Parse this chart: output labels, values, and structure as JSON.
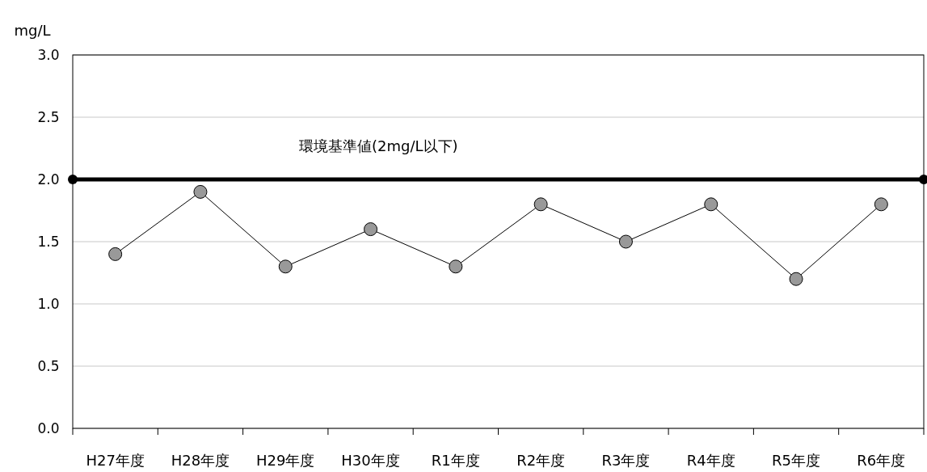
{
  "chart_data": {
    "type": "line",
    "ylabel": "mg/L",
    "categories": [
      "H27年度",
      "H28年度",
      "H29年度",
      "H30年度",
      "R1年度",
      "R2年度",
      "R3年度",
      "R4年度",
      "R5年度",
      "R6年度"
    ],
    "series": [
      {
        "color": "#999999",
        "values": [
          1.4,
          1.9,
          1.3,
          1.6,
          1.3,
          1.8,
          1.5,
          1.8,
          1.2,
          1.8
        ]
      }
    ],
    "ylim": [
      0,
      3
    ],
    "yticks": [
      {
        "value": 0,
        "label": "0.0"
      },
      {
        "value": 0.5,
        "label": "0.5"
      },
      {
        "value": 1,
        "label": "1.0"
      },
      {
        "value": 1.5,
        "label": "1.5"
      },
      {
        "value": 2,
        "label": "2.0"
      },
      {
        "value": 2.5,
        "label": "2.5"
      },
      {
        "value": 3,
        "label": "3.0"
      }
    ],
    "grid": "y",
    "marker": "circle",
    "line_style": "solid",
    "ref_lines": [
      {
        "axis": "y",
        "value": 2,
        "label": "環境基準値(2mg/L以下)",
        "color": "#000000"
      }
    ]
  }
}
